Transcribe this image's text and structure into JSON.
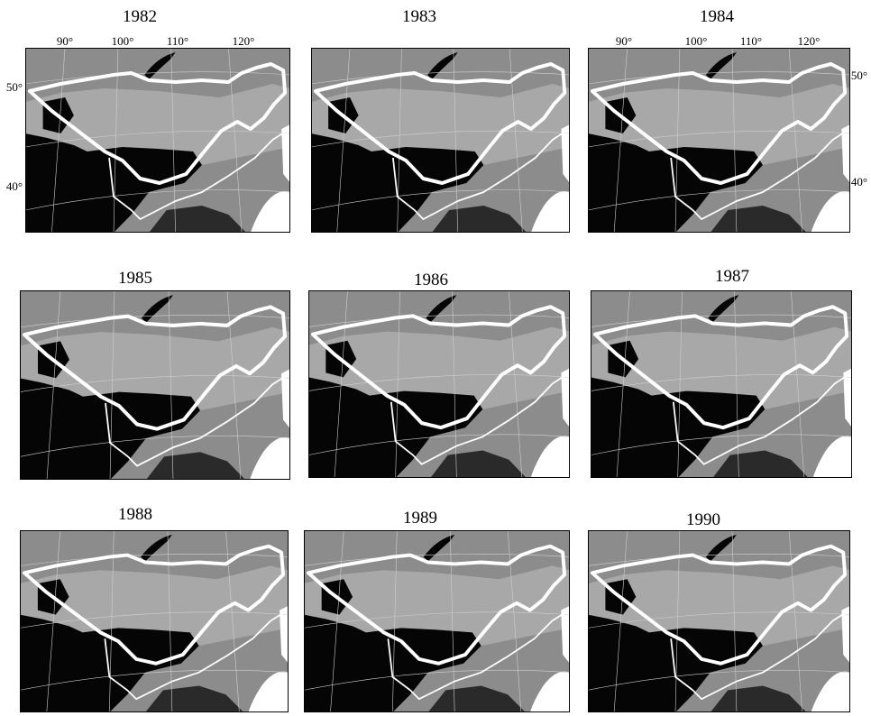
{
  "panels": [
    {
      "title": "1982",
      "lon_labels": [
        "90°",
        "100°",
        "110°",
        "120°"
      ],
      "lat_labels": [
        "50°",
        "40°"
      ]
    },
    {
      "title": "1983"
    },
    {
      "title": "1984",
      "lon_labels": [
        "90°",
        "100°",
        "110°",
        "120°"
      ],
      "lat_labels": [
        "50°",
        "40°"
      ]
    },
    {
      "title": "1985"
    },
    {
      "title": "1986"
    },
    {
      "title": "1987"
    },
    {
      "title": "1988"
    },
    {
      "title": "1989"
    },
    {
      "title": "1990"
    }
  ]
}
